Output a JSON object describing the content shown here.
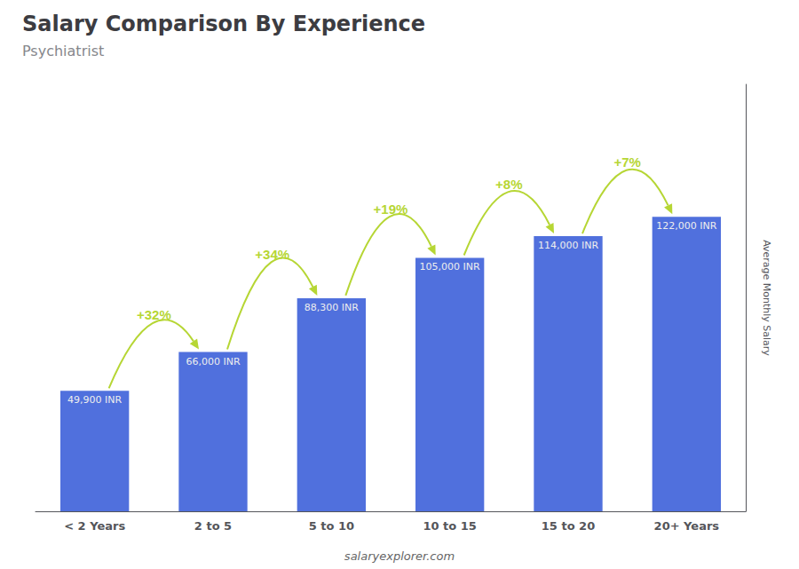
{
  "chart_data": {
    "type": "bar",
    "title": "Salary Comparison By Experience",
    "subtitle": "Psychiatrist",
    "y_label": "Average Monthly Salary",
    "categories": [
      "< 2 Years",
      "2 to 5",
      "5 to 10",
      "10 to 15",
      "15 to 20",
      "20+ Years"
    ],
    "values": [
      49900,
      66000,
      88300,
      105000,
      114000,
      122000
    ],
    "value_labels": [
      "49,900 INR",
      "66,000 INR",
      "88,300 INR",
      "105,000 INR",
      "114,000 INR",
      "122,000 INR"
    ],
    "data_labels": true,
    "annotations": [
      "+32%",
      "+34%",
      "+19%",
      "+8%",
      "+7%"
    ],
    "note": "salaryexplorer.com",
    "ylim": [
      0,
      176900
    ],
    "grid": false,
    "tick_labels": "x"
  }
}
